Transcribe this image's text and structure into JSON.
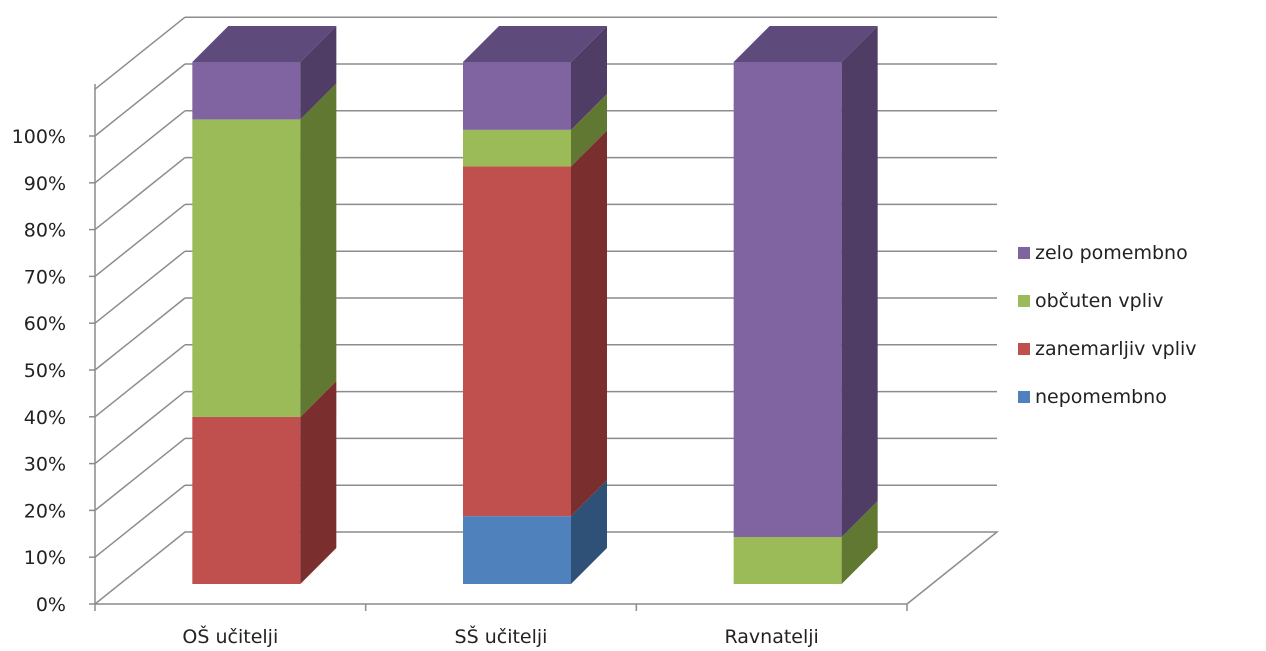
{
  "chart_data": {
    "type": "bar",
    "stacked": true,
    "percent": true,
    "three_d": true,
    "categories": [
      "OŠ učitelji",
      "SŠ učitelji",
      "Ravnatelji"
    ],
    "y_ticks": [
      "0%",
      "10%",
      "20%",
      "30%",
      "40%",
      "50%",
      "60%",
      "70%",
      "80%",
      "90%",
      "100%"
    ],
    "ylim": [
      0,
      100
    ],
    "grid": true,
    "legend_position": "right",
    "series": [
      {
        "name": "nepomembno",
        "values": [
          0,
          13,
          0
        ],
        "color": "#4F81BD",
        "side_color": "#2F5177",
        "top_color": "#3E6597"
      },
      {
        "name": "zanemarljiv vpliv",
        "values": [
          32,
          67,
          0
        ],
        "color": "#C0504D",
        "side_color": "#7B2E2E",
        "top_color": "#9C3F3C"
      },
      {
        "name": "občuten vpliv",
        "values": [
          57,
          7,
          9
        ],
        "color": "#9BBB59",
        "side_color": "#617833",
        "top_color": "#7E9A46"
      },
      {
        "name": "zelo pomembno",
        "values": [
          11,
          13,
          91
        ],
        "color": "#8064A2",
        "side_color": "#4F3D66",
        "top_color": "#5F4A7C"
      }
    ]
  }
}
